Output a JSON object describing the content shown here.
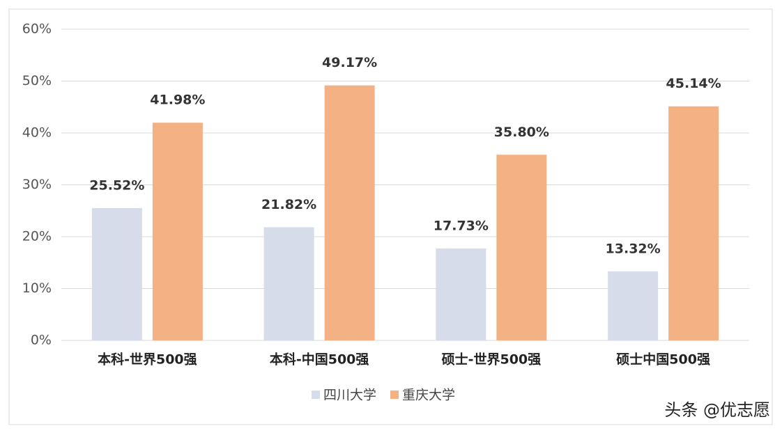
{
  "chart_data": {
    "type": "bar",
    "categories": [
      "本科-世界500强",
      "本科-中国500强",
      "硕士-世界500强",
      "硕士中国500强"
    ],
    "series": [
      {
        "name": "四川大学",
        "color": "#d6dce9",
        "values": [
          25.52,
          21.82,
          17.73,
          13.32
        ],
        "value_labels": [
          "25.52%",
          "21.82%",
          "17.73%",
          "13.32%"
        ]
      },
      {
        "name": "重庆大学",
        "color": "#f4b183",
        "values": [
          41.98,
          49.17,
          35.8,
          45.14
        ],
        "value_labels": [
          "41.98%",
          "49.17%",
          "35.80%",
          "45.14%"
        ]
      }
    ],
    "ylim": [
      0,
      60
    ],
    "yticks": [
      {
        "value": 0,
        "label": "0%"
      },
      {
        "value": 10,
        "label": "10%"
      },
      {
        "value": 20,
        "label": "20%"
      },
      {
        "value": 30,
        "label": "30%"
      },
      {
        "value": 40,
        "label": "40%"
      },
      {
        "value": 50,
        "label": "50%"
      },
      {
        "value": 60,
        "label": "60%"
      }
    ],
    "grid": true,
    "legend": "bottom",
    "annotation": "头条 @优志愿"
  }
}
